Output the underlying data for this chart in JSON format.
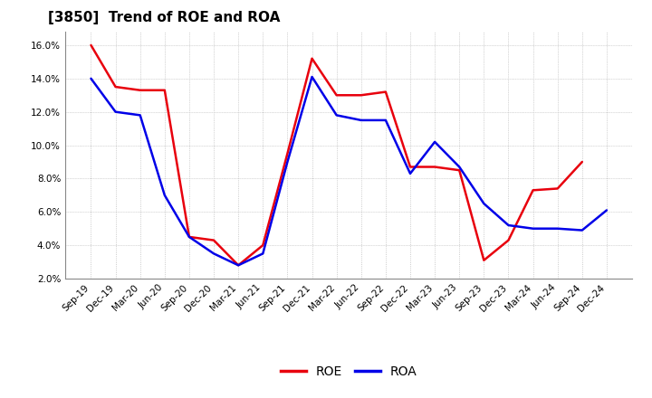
{
  "title": "[3850]  Trend of ROE and ROA",
  "labels": [
    "Sep-19",
    "Dec-19",
    "Mar-20",
    "Jun-20",
    "Sep-20",
    "Dec-20",
    "Mar-21",
    "Jun-21",
    "Sep-21",
    "Dec-21",
    "Mar-22",
    "Jun-22",
    "Sep-22",
    "Dec-22",
    "Mar-23",
    "Jun-23",
    "Sep-23",
    "Dec-23",
    "Mar-24",
    "Jun-24",
    "Sep-24",
    "Dec-24"
  ],
  "ROE": [
    16.0,
    13.5,
    13.3,
    13.3,
    4.5,
    4.3,
    2.8,
    4.0,
    9.5,
    15.2,
    13.0,
    13.0,
    13.2,
    8.7,
    8.7,
    8.5,
    3.1,
    4.3,
    7.3,
    7.4,
    9.0,
    null
  ],
  "ROA": [
    14.0,
    12.0,
    11.8,
    7.0,
    4.5,
    3.5,
    2.8,
    3.5,
    9.0,
    14.1,
    11.8,
    11.5,
    11.5,
    8.3,
    10.2,
    8.7,
    6.5,
    5.2,
    5.0,
    5.0,
    4.9,
    6.1
  ],
  "ROE_color": "#e8000d",
  "ROA_color": "#0000e8",
  "bg_color": "#ffffff",
  "plot_bg_color": "#ffffff",
  "grid_color": "#bbbbbb",
  "ylim": [
    2.0,
    16.8
  ],
  "yticks": [
    2.0,
    4.0,
    6.0,
    8.0,
    10.0,
    12.0,
    14.0,
    16.0
  ],
  "legend_labels": [
    "ROE",
    "ROA"
  ],
  "linewidth": 1.8,
  "title_fontsize": 11,
  "tick_fontsize": 7.5
}
